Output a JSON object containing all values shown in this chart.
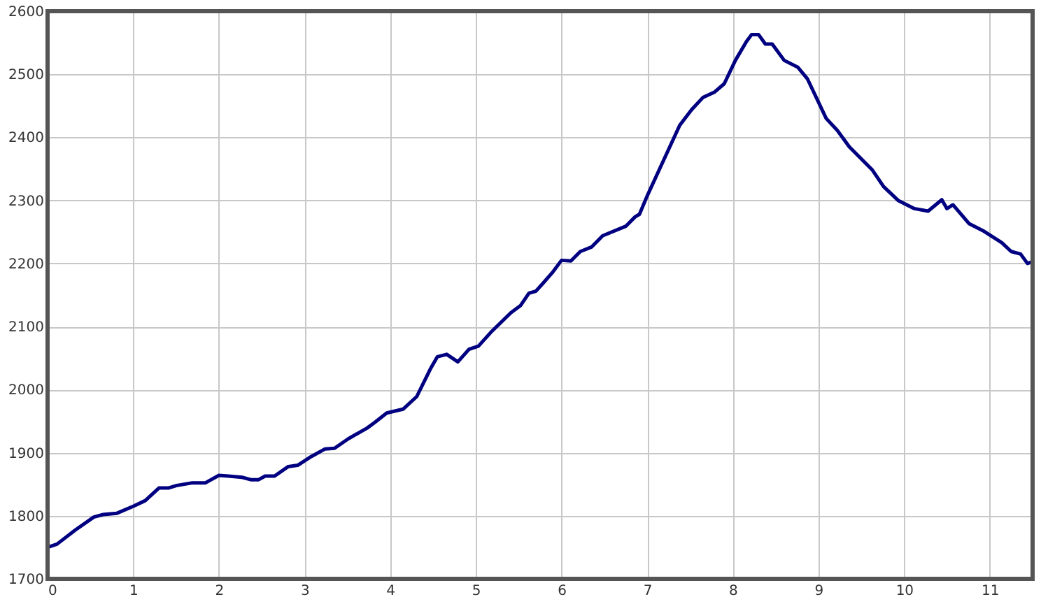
{
  "chart_data": {
    "type": "line",
    "xlim": [
      0,
      11.5
    ],
    "xticks": [
      0,
      1,
      2,
      3,
      4,
      5,
      6,
      7,
      8,
      9,
      10,
      11
    ],
    "ylim": [
      1700,
      2600
    ],
    "yticks": [
      1700,
      1800,
      1900,
      2000,
      2100,
      2200,
      2300,
      2400,
      2500,
      2600
    ],
    "grid": true,
    "marker": "none",
    "line_style": "solid",
    "x": [
      0,
      0.11,
      0.32,
      0.54,
      0.65,
      0.81,
      1.0,
      1.14,
      1.3,
      1.41,
      1.51,
      1.68,
      1.84,
      2.0,
      2.11,
      2.27,
      2.38,
      2.46,
      2.54,
      2.65,
      2.81,
      2.92,
      3.08,
      3.24,
      3.35,
      3.51,
      3.73,
      3.82,
      3.96,
      4.15,
      4.31,
      4.47,
      4.55,
      4.66,
      4.79,
      4.92,
      5.03,
      5.19,
      5.41,
      5.52,
      5.62,
      5.7,
      5.78,
      5.89,
      6.0,
      6.11,
      6.22,
      6.35,
      6.48,
      6.75,
      6.86,
      6.91,
      7.0,
      7.19,
      7.38,
      7.52,
      7.65,
      7.79,
      7.9,
      8.03,
      8.16,
      8.22,
      8.3,
      8.38,
      8.46,
      8.6,
      8.76,
      8.87,
      9.09,
      9.22,
      9.36,
      9.52,
      9.63,
      9.76,
      9.93,
      10.12,
      10.28,
      10.44,
      10.5,
      10.57,
      10.76,
      10.92,
      11.14,
      11.25,
      11.36,
      11.44,
      11.48
    ],
    "series": [
      {
        "color": "#000080",
        "values": [
          1750,
          1755,
          1777,
          1798,
          1802,
          1804,
          1815,
          1824,
          1844,
          1844,
          1848,
          1852,
          1852,
          1864,
          1863,
          1861,
          1857,
          1857,
          1863,
          1863,
          1878,
          1880,
          1894,
          1906,
          1907,
          1922,
          1939,
          1948,
          1963,
          1969,
          1989,
          2033,
          2052,
          2056,
          2044,
          2064,
          2069,
          2093,
          2122,
          2133,
          2153,
          2156,
          2168,
          2185,
          2205,
          2204,
          2219,
          2226,
          2244,
          2259,
          2274,
          2278,
          2307,
          2363,
          2419,
          2444,
          2463,
          2472,
          2485,
          2522,
          2552,
          2563,
          2563,
          2548,
          2548,
          2522,
          2511,
          2493,
          2430,
          2411,
          2385,
          2363,
          2348,
          2322,
          2300,
          2287,
          2283,
          2301,
          2287,
          2293,
          2263,
          2252,
          2233,
          2219,
          2215,
          2200,
          2202
        ]
      }
    ]
  }
}
